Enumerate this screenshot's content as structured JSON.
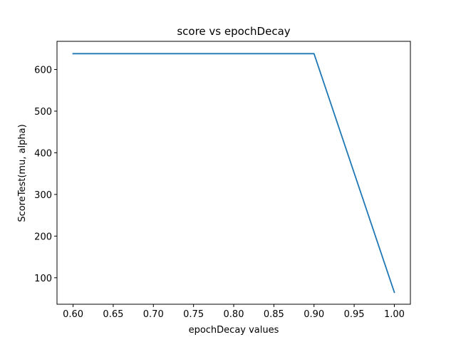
{
  "chart_data": {
    "type": "line",
    "title": "score vs epochDecay",
    "xlabel": "epochDecay values",
    "ylabel": "ScoreTest(mu, alpha)",
    "xlim": [
      0.58,
      1.02
    ],
    "ylim": [
      36.4,
      667.6
    ],
    "xticks": [
      0.6,
      0.65,
      0.7,
      0.75,
      0.8,
      0.85,
      0.9,
      0.95,
      1.0
    ],
    "xtick_labels": [
      "0.60",
      "0.65",
      "0.70",
      "0.75",
      "0.80",
      "0.85",
      "0.90",
      "0.95",
      "1.00"
    ],
    "yticks": [
      100,
      200,
      300,
      400,
      500,
      600
    ],
    "ytick_labels": [
      "100",
      "200",
      "300",
      "400",
      "500",
      "600"
    ],
    "grid": false,
    "series": [
      {
        "color": "#1f77b4",
        "x": [
          0.6,
          0.9,
          1.0
        ],
        "y": [
          638,
          638,
          65
        ]
      }
    ]
  }
}
